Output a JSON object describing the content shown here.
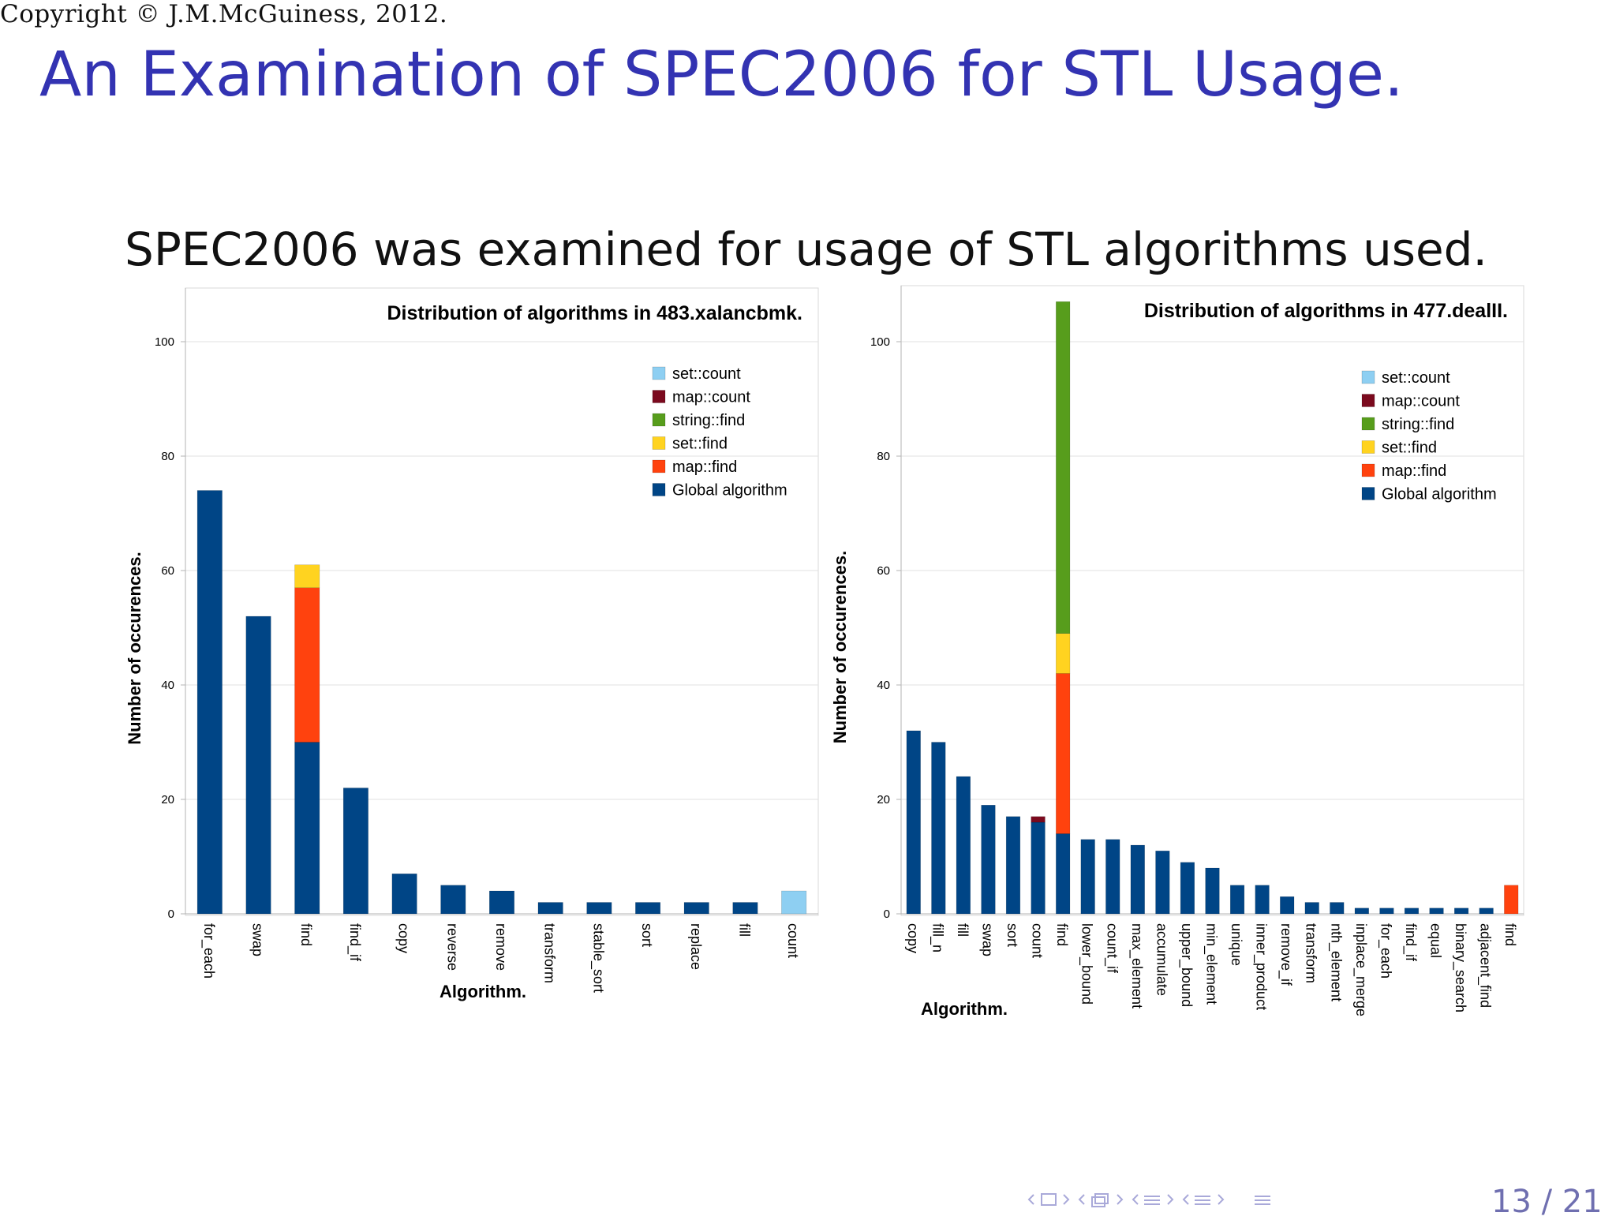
{
  "copyright": "Copyright © J.M.McGuiness, 2012.",
  "slide_title": "An Examination of SPEC2006 for STL Usage.",
  "subtitle": "SPEC2006 was examined for usage of STL algorithms used.",
  "page_number": "13 / 21",
  "colors": {
    "title": "#3333b2",
    "set::count": "#8ecff2",
    "map::count": "#7b0a1e",
    "string::find": "#579d1c",
    "set::find": "#ffd320",
    "map::find": "#ff420e",
    "Global algorithm": "#004586"
  },
  "chart_data": [
    {
      "type": "bar",
      "stacked": true,
      "title": "Distribution of algorithms in 483.xalancbmk.",
      "xlabel": "Algorithm.",
      "ylabel": "Number of occurences.",
      "ylim": [
        0,
        110
      ],
      "yticks": [
        0,
        20,
        40,
        60,
        80,
        100
      ],
      "grid": true,
      "legend_position": "top-right",
      "legend": [
        "set::count",
        "map::count",
        "string::find",
        "set::find",
        "map::find",
        "Global algorithm"
      ],
      "categories": [
        "for_each",
        "swap",
        "find",
        "find_if",
        "copy",
        "reverse",
        "remove",
        "transform",
        "stable_sort",
        "sort",
        "replace",
        "fill",
        "count"
      ],
      "series": [
        {
          "name": "Global algorithm",
          "values": [
            74,
            52,
            30,
            22,
            7,
            5,
            4,
            2,
            2,
            2,
            2,
            2,
            0
          ]
        },
        {
          "name": "map::find",
          "values": [
            0,
            0,
            27,
            0,
            0,
            0,
            0,
            0,
            0,
            0,
            0,
            0,
            0
          ]
        },
        {
          "name": "set::find",
          "values": [
            0,
            0,
            4,
            0,
            0,
            0,
            0,
            0,
            0,
            0,
            0,
            0,
            0
          ]
        },
        {
          "name": "string::find",
          "values": [
            0,
            0,
            0,
            0,
            0,
            0,
            0,
            0,
            0,
            0,
            0,
            0,
            0
          ]
        },
        {
          "name": "map::count",
          "values": [
            0,
            0,
            0,
            0,
            0,
            0,
            0,
            0,
            0,
            0,
            0,
            0,
            0
          ]
        },
        {
          "name": "set::count",
          "values": [
            0,
            0,
            0,
            0,
            0,
            0,
            0,
            0,
            0,
            0,
            0,
            0,
            4
          ]
        }
      ]
    },
    {
      "type": "bar",
      "stacked": true,
      "title": "Distribution of algorithms in 477.dealII.",
      "xlabel": "Algorithm.",
      "ylabel": "Number of occurences.",
      "ylim": [
        0,
        110
      ],
      "yticks": [
        0,
        20,
        40,
        60,
        80,
        100
      ],
      "grid": true,
      "legend_position": "top-right",
      "legend": [
        "set::count",
        "map::count",
        "string::find",
        "set::find",
        "map::find",
        "Global algorithm"
      ],
      "categories": [
        "copy",
        "fill_n",
        "fill",
        "swap",
        "sort",
        "count",
        "find",
        "lower_bound",
        "count_if",
        "max_element",
        "accumulate",
        "upper_bound",
        "min_element",
        "unique",
        "inner_product",
        "remove_if",
        "transform",
        "nth_element",
        "inplace_merge",
        "for_each",
        "find_if",
        "equal",
        "binary_search",
        "adjacent_find",
        "find"
      ],
      "series": [
        {
          "name": "Global algorithm",
          "values": [
            32,
            30,
            24,
            19,
            17,
            16,
            14,
            13,
            13,
            12,
            11,
            9,
            8,
            5,
            5,
            3,
            2,
            2,
            1,
            1,
            1,
            1,
            1,
            1,
            0
          ]
        },
        {
          "name": "map::find",
          "values": [
            0,
            0,
            0,
            0,
            0,
            0,
            28,
            0,
            0,
            0,
            0,
            0,
            0,
            0,
            0,
            0,
            0,
            0,
            0,
            0,
            0,
            0,
            0,
            0,
            5
          ]
        },
        {
          "name": "set::find",
          "values": [
            0,
            0,
            0,
            0,
            0,
            0,
            7,
            0,
            0,
            0,
            0,
            0,
            0,
            0,
            0,
            0,
            0,
            0,
            0,
            0,
            0,
            0,
            0,
            0,
            0
          ]
        },
        {
          "name": "string::find",
          "values": [
            0,
            0,
            0,
            0,
            0,
            0,
            58,
            0,
            0,
            0,
            0,
            0,
            0,
            0,
            0,
            0,
            0,
            0,
            0,
            0,
            0,
            0,
            0,
            0,
            0
          ]
        },
        {
          "name": "map::count",
          "values": [
            0,
            0,
            0,
            0,
            0,
            1,
            0,
            0,
            0,
            0,
            0,
            0,
            0,
            0,
            0,
            0,
            0,
            0,
            0,
            0,
            0,
            0,
            0,
            0,
            0
          ]
        },
        {
          "name": "set::count",
          "values": [
            0,
            0,
            0,
            0,
            0,
            0,
            0,
            0,
            0,
            0,
            0,
            0,
            0,
            0,
            0,
            0,
            0,
            0,
            0,
            0,
            0,
            0,
            0,
            0,
            0
          ]
        }
      ]
    }
  ]
}
